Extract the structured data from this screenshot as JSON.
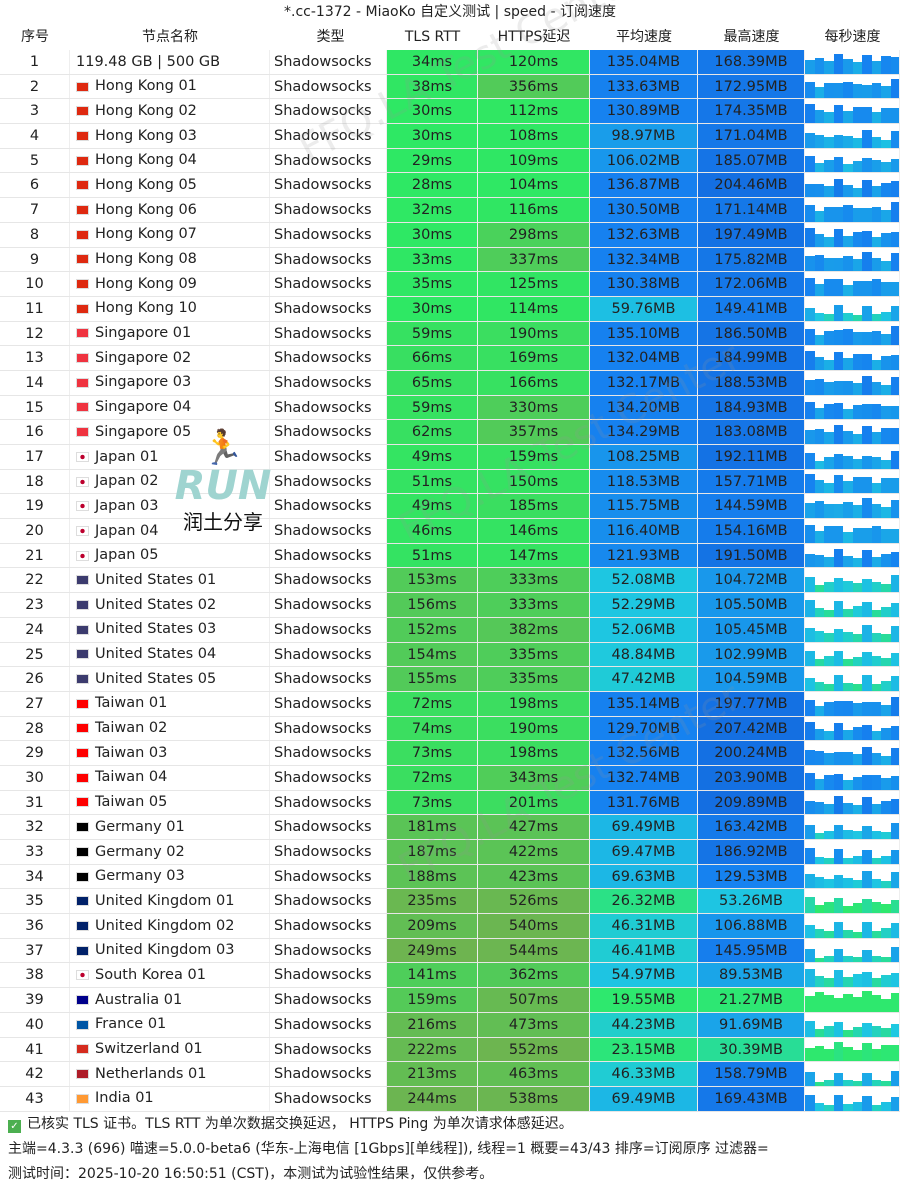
{
  "window": {
    "title": "*.cc-1372 - MiaoKo 自定义测试 | speed - 订阅速度"
  },
  "headers": [
    "序号",
    "节点名称",
    "类型",
    "TLS RTT",
    "HTTPS延迟",
    "平均速度",
    "最高速度",
    "每秒速度"
  ],
  "rows": [
    [
      "1",
      "",
      "119.48 GB | 500 GB",
      "Shadowsocks",
      "34ms",
      "120ms",
      "135.04MB",
      "168.39MB"
    ],
    [
      "2",
      "hk",
      "Hong Kong 01",
      "Shadowsocks",
      "38ms",
      "356ms",
      "133.63MB",
      "172.95MB"
    ],
    [
      "3",
      "hk",
      "Hong Kong 02",
      "Shadowsocks",
      "30ms",
      "112ms",
      "130.89MB",
      "174.35MB"
    ],
    [
      "4",
      "hk",
      "Hong Kong 03",
      "Shadowsocks",
      "30ms",
      "108ms",
      "98.97MB",
      "171.04MB"
    ],
    [
      "5",
      "hk",
      "Hong Kong 04",
      "Shadowsocks",
      "29ms",
      "109ms",
      "106.02MB",
      "185.07MB"
    ],
    [
      "6",
      "hk",
      "Hong Kong 05",
      "Shadowsocks",
      "28ms",
      "104ms",
      "136.87MB",
      "204.46MB"
    ],
    [
      "7",
      "hk",
      "Hong Kong 06",
      "Shadowsocks",
      "32ms",
      "116ms",
      "130.50MB",
      "171.14MB"
    ],
    [
      "8",
      "hk",
      "Hong Kong 07",
      "Shadowsocks",
      "30ms",
      "298ms",
      "132.63MB",
      "197.49MB"
    ],
    [
      "9",
      "hk",
      "Hong Kong 08",
      "Shadowsocks",
      "33ms",
      "337ms",
      "132.34MB",
      "175.82MB"
    ],
    [
      "10",
      "hk",
      "Hong Kong 09",
      "Shadowsocks",
      "35ms",
      "125ms",
      "130.38MB",
      "172.06MB"
    ],
    [
      "11",
      "hk",
      "Hong Kong 10",
      "Shadowsocks",
      "30ms",
      "114ms",
      "59.76MB",
      "149.41MB"
    ],
    [
      "12",
      "sg",
      "Singapore 01",
      "Shadowsocks",
      "59ms",
      "190ms",
      "135.10MB",
      "186.50MB"
    ],
    [
      "13",
      "sg",
      "Singapore 02",
      "Shadowsocks",
      "66ms",
      "169ms",
      "132.04MB",
      "184.99MB"
    ],
    [
      "14",
      "sg",
      "Singapore 03",
      "Shadowsocks",
      "65ms",
      "166ms",
      "132.17MB",
      "188.53MB"
    ],
    [
      "15",
      "sg",
      "Singapore 04",
      "Shadowsocks",
      "59ms",
      "330ms",
      "134.20MB",
      "184.93MB"
    ],
    [
      "16",
      "sg",
      "Singapore 05",
      "Shadowsocks",
      "62ms",
      "357ms",
      "134.29MB",
      "183.08MB"
    ],
    [
      "17",
      "jp",
      "Japan 01",
      "Shadowsocks",
      "49ms",
      "159ms",
      "108.25MB",
      "192.11MB"
    ],
    [
      "18",
      "jp",
      "Japan 02",
      "Shadowsocks",
      "51ms",
      "150ms",
      "118.53MB",
      "157.71MB"
    ],
    [
      "19",
      "jp",
      "Japan 03",
      "Shadowsocks",
      "49ms",
      "185ms",
      "115.75MB",
      "144.59MB"
    ],
    [
      "20",
      "jp",
      "Japan 04",
      "Shadowsocks",
      "46ms",
      "146ms",
      "116.40MB",
      "154.16MB"
    ],
    [
      "21",
      "jp",
      "Japan 05",
      "Shadowsocks",
      "51ms",
      "147ms",
      "121.93MB",
      "191.50MB"
    ],
    [
      "22",
      "us",
      "United States 01",
      "Shadowsocks",
      "153ms",
      "333ms",
      "52.08MB",
      "104.72MB"
    ],
    [
      "23",
      "us",
      "United States 02",
      "Shadowsocks",
      "156ms",
      "333ms",
      "52.29MB",
      "105.50MB"
    ],
    [
      "24",
      "us",
      "United States 03",
      "Shadowsocks",
      "152ms",
      "382ms",
      "52.06MB",
      "105.45MB"
    ],
    [
      "25",
      "us",
      "United States 04",
      "Shadowsocks",
      "154ms",
      "335ms",
      "48.84MB",
      "102.99MB"
    ],
    [
      "26",
      "us",
      "United States 05",
      "Shadowsocks",
      "155ms",
      "335ms",
      "47.42MB",
      "104.59MB"
    ],
    [
      "27",
      "tw",
      "Taiwan 01",
      "Shadowsocks",
      "72ms",
      "198ms",
      "135.14MB",
      "197.77MB"
    ],
    [
      "28",
      "tw",
      "Taiwan 02",
      "Shadowsocks",
      "74ms",
      "190ms",
      "129.70MB",
      "207.42MB"
    ],
    [
      "29",
      "tw",
      "Taiwan 03",
      "Shadowsocks",
      "73ms",
      "198ms",
      "132.56MB",
      "200.24MB"
    ],
    [
      "30",
      "tw",
      "Taiwan 04",
      "Shadowsocks",
      "72ms",
      "343ms",
      "132.74MB",
      "203.90MB"
    ],
    [
      "31",
      "tw",
      "Taiwan 05",
      "Shadowsocks",
      "73ms",
      "201ms",
      "131.76MB",
      "209.89MB"
    ],
    [
      "32",
      "de",
      "Germany 01",
      "Shadowsocks",
      "181ms",
      "427ms",
      "69.49MB",
      "163.42MB"
    ],
    [
      "33",
      "de",
      "Germany 02",
      "Shadowsocks",
      "187ms",
      "422ms",
      "69.47MB",
      "186.92MB"
    ],
    [
      "34",
      "de",
      "Germany 03",
      "Shadowsocks",
      "188ms",
      "423ms",
      "69.63MB",
      "129.53MB"
    ],
    [
      "35",
      "gb",
      "United Kingdom 01",
      "Shadowsocks",
      "235ms",
      "526ms",
      "26.32MB",
      "53.26MB"
    ],
    [
      "36",
      "gb",
      "United Kingdom 02",
      "Shadowsocks",
      "209ms",
      "540ms",
      "46.31MB",
      "106.88MB"
    ],
    [
      "37",
      "gb",
      "United Kingdom 03",
      "Shadowsocks",
      "249ms",
      "544ms",
      "46.41MB",
      "145.95MB"
    ],
    [
      "38",
      "kr",
      "South Korea 01",
      "Shadowsocks",
      "141ms",
      "362ms",
      "54.97MB",
      "89.53MB"
    ],
    [
      "39",
      "au",
      "Australia 01",
      "Shadowsocks",
      "159ms",
      "507ms",
      "19.55MB",
      "21.27MB"
    ],
    [
      "40",
      "fr",
      "France 01",
      "Shadowsocks",
      "216ms",
      "473ms",
      "44.23MB",
      "91.69MB"
    ],
    [
      "41",
      "ch",
      "Switzerland 01",
      "Shadowsocks",
      "222ms",
      "552ms",
      "23.15MB",
      "30.39MB"
    ],
    [
      "42",
      "nl",
      "Netherlands 01",
      "Shadowsocks",
      "213ms",
      "463ms",
      "46.33MB",
      "158.79MB"
    ],
    [
      "43",
      "in",
      "India 01",
      "Shadowsocks",
      "244ms",
      "538ms",
      "69.49MB",
      "169.43MB"
    ]
  ],
  "footer": {
    "line1": "已核实 TLS 证书。TLS RTT 为单次数据交换延迟， HTTPS Ping 为单次请求体感延迟。",
    "line2": "主端=4.3.3 (696) 喵速=5.0.0-beta6 (华东-上海电信 [1Gbps][单线程]), 线程=1 概要=43/43 排序=订阅原序 过滤器=",
    "line3": "测试时间：2025-10-20 16:50:51 (CST)，本测试为试验性结果，仅供参考。"
  },
  "logo": {
    "text": "RUN",
    "subtitle": "润土分享"
  },
  "watermark": "FFQ.LA Test Center",
  "flag_colors": {
    "hk": "#de2910",
    "sg": "#ef3340",
    "jp": "#ffffff",
    "us": "#3c3b6e",
    "tw": "#fe0000",
    "de": "#000000",
    "gb": "#012169",
    "kr": "#ffffff",
    "au": "#00008b",
    "fr": "#0055a4",
    "ch": "#d52b1e",
    "nl": "#ae1c28",
    "in": "#ff9933"
  }
}
